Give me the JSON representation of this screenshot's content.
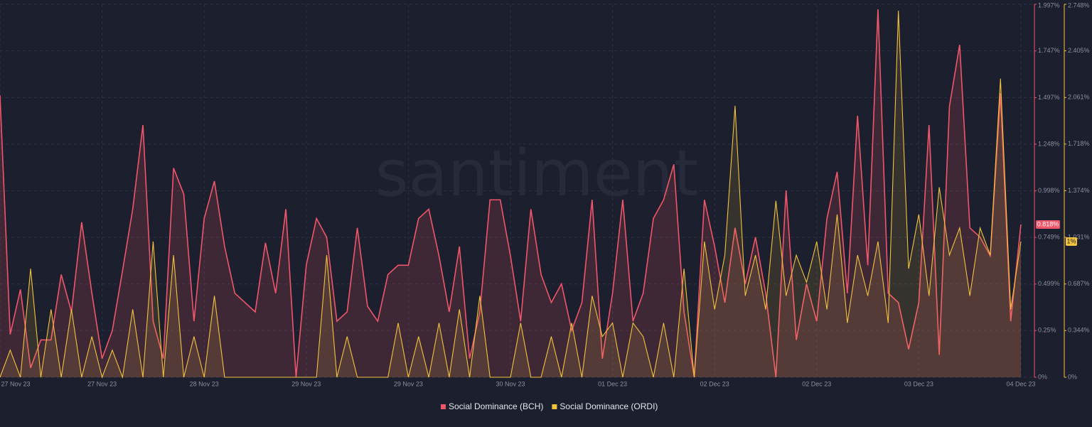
{
  "chart_data": {
    "type": "line",
    "watermark": "santiment",
    "categories": [
      "27 Nov 23",
      null,
      null,
      null,
      null,
      null,
      null,
      null,
      null,
      null,
      "27 Nov 23",
      null,
      null,
      null,
      null,
      null,
      null,
      null,
      null,
      null,
      "28 Nov 23",
      null,
      null,
      null,
      null,
      null,
      null,
      null,
      null,
      null,
      "29 Nov 23",
      null,
      null,
      null,
      null,
      null,
      null,
      null,
      null,
      null,
      "29 Nov 23",
      null,
      null,
      null,
      null,
      null,
      null,
      null,
      null,
      null,
      "30 Nov 23",
      null,
      null,
      null,
      null,
      null,
      null,
      null,
      null,
      null,
      "01 Dec 23",
      null,
      null,
      null,
      null,
      null,
      null,
      null,
      null,
      null,
      "02 Dec 23",
      null,
      null,
      null,
      null,
      null,
      null,
      null,
      null,
      null,
      "02 Dec 23",
      null,
      null,
      null,
      null,
      null,
      null,
      null,
      null,
      null,
      "03 Dec 23",
      null,
      null,
      null,
      null,
      null,
      null,
      null,
      null,
      null,
      "04 Dec 23"
    ],
    "series": [
      {
        "name": "Social Dominance (BCH)",
        "color": "#f0566a",
        "axis": "y",
        "last_label": "0.818%",
        "values": [
          1.51,
          0.23,
          0.47,
          0.05,
          0.2,
          0.2,
          0.55,
          0.35,
          0.83,
          0.45,
          0.1,
          0.25,
          0.57,
          0.9,
          1.35,
          0.3,
          0.1,
          1.12,
          0.98,
          0.3,
          0.85,
          1.05,
          0.7,
          0.45,
          0.4,
          0.35,
          0.72,
          0.45,
          0.9,
          0.0,
          0.6,
          0.85,
          0.75,
          0.3,
          0.35,
          0.8,
          0.38,
          0.3,
          0.55,
          0.6,
          0.6,
          0.85,
          0.9,
          0.65,
          0.35,
          0.7,
          0.1,
          0.35,
          0.95,
          0.95,
          0.65,
          0.3,
          0.9,
          0.55,
          0.4,
          0.5,
          0.25,
          0.4,
          0.95,
          0.1,
          0.45,
          0.95,
          0.3,
          0.45,
          0.85,
          0.95,
          1.14,
          0.35,
          0.0,
          0.95,
          0.7,
          0.4,
          0.8,
          0.5,
          0.75,
          0.45,
          0.0,
          1.0,
          0.2,
          0.5,
          0.3,
          0.85,
          1.1,
          0.45,
          1.4,
          0.6,
          1.97,
          0.45,
          0.4,
          0.15,
          0.4,
          1.35,
          0.12,
          1.45,
          1.78,
          0.8,
          0.75,
          0.65,
          1.52,
          0.3,
          0.818
        ]
      },
      {
        "name": "Social Dominance (ORDI)",
        "color": "#f3c33f",
        "axis": "y2",
        "last_label": "1%",
        "values": [
          0.0,
          0.2,
          0.0,
          0.8,
          0.0,
          0.5,
          0.0,
          0.5,
          0.0,
          0.3,
          0.0,
          0.2,
          0.0,
          0.5,
          0.0,
          1.0,
          0.0,
          0.9,
          0.0,
          0.3,
          0.0,
          0.6,
          0.0,
          0.0,
          0.0,
          0.0,
          0.0,
          0.0,
          0.0,
          0.0,
          0.0,
          0.0,
          0.9,
          0.0,
          0.3,
          0.0,
          0.0,
          0.0,
          0.0,
          0.4,
          0.0,
          0.3,
          0.0,
          0.4,
          0.0,
          0.5,
          0.0,
          0.6,
          0.0,
          0.0,
          0.0,
          0.4,
          0.0,
          0.0,
          0.3,
          0.0,
          0.4,
          0.0,
          0.6,
          0.3,
          0.4,
          0.0,
          0.4,
          0.3,
          0.0,
          0.4,
          0.0,
          0.8,
          0.0,
          1.0,
          0.5,
          0.9,
          2.0,
          0.6,
          0.9,
          0.5,
          1.3,
          0.6,
          0.9,
          0.7,
          1.0,
          0.5,
          1.2,
          0.4,
          0.9,
          0.6,
          1.0,
          0.4,
          2.7,
          0.8,
          1.2,
          0.6,
          1.4,
          0.9,
          1.1,
          0.6,
          1.1,
          0.9,
          2.2,
          0.5,
          1.0
        ]
      }
    ],
    "ylim": [
      0,
      1.997
    ],
    "yticks": [
      0,
      {
        "value": 0.25,
        "label": "0.25%"
      },
      {
        "value": 0.499,
        "label": "0.499%"
      },
      {
        "value": 0.749,
        "label": "0.749%"
      },
      {
        "value": 0.998,
        "label": "0.998%"
      },
      {
        "value": 1.248,
        "label": "1.248%"
      },
      {
        "value": 1.497,
        "label": "1.497%"
      },
      {
        "value": 1.747,
        "label": "1.747%"
      },
      {
        "value": 1.997,
        "label": "1.997%"
      }
    ],
    "y2lim": [
      0,
      2.748
    ],
    "y2ticks": [
      0,
      {
        "value": 0.344,
        "label": "0.344%"
      },
      {
        "value": 0.687,
        "label": "0.687%"
      },
      {
        "value": 1.031,
        "label": "1.031%"
      },
      {
        "value": 1.374,
        "label": "1.374%"
      },
      {
        "value": 1.718,
        "label": "1.718%"
      },
      {
        "value": 2.061,
        "label": "2.061%"
      },
      {
        "value": 2.405,
        "label": "2.405%"
      },
      {
        "value": 2.748,
        "label": "2.748%"
      }
    ],
    "zero_label": "0%",
    "grid": true
  }
}
